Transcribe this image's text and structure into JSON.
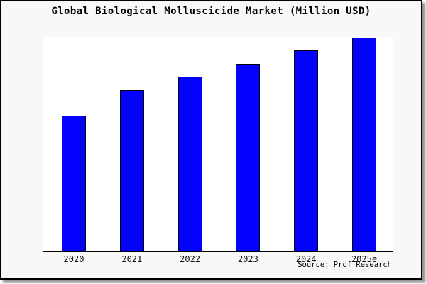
{
  "chart_data": {
    "type": "bar",
    "title": "Global Biological Molluscicide Market (Million USD)",
    "categories": [
      "2020",
      "2021",
      "2022",
      "2023",
      "2024",
      "2025e"
    ],
    "values": [
      190,
      226,
      245,
      263,
      282,
      300
    ],
    "value_scale": "relative (no y-axis labels shown)",
    "xlabel": "",
    "ylabel": "",
    "ylim": [
      0,
      301
    ],
    "grid": false,
    "legend": false,
    "y_axis": "hidden",
    "bar_color": "#0202fd",
    "bar_border_color": "#000000"
  },
  "footer": {
    "source": "Source: Prof Research"
  },
  "colors": {
    "card_background": "#f8f8f8",
    "plot_background": "#ffffff",
    "card_border": "#000000",
    "axis_line": "#000000",
    "title_text": "#000000"
  }
}
